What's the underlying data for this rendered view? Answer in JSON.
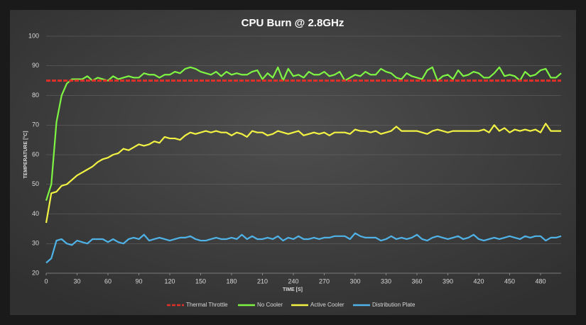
{
  "chart_data": {
    "type": "line",
    "title": "CPU Burn @ 2.8GHz",
    "x_label": "TIME [S]",
    "y_label": "TEMPERATURE [°C]",
    "x": [
      0,
      5,
      10,
      15,
      20,
      25,
      30,
      35,
      40,
      45,
      50,
      55,
      60,
      65,
      70,
      75,
      80,
      85,
      90,
      95,
      100,
      105,
      110,
      115,
      120,
      125,
      130,
      135,
      140,
      145,
      150,
      155,
      160,
      165,
      170,
      175,
      180,
      185,
      190,
      195,
      200,
      205,
      210,
      215,
      220,
      225,
      230,
      235,
      240,
      245,
      250,
      255,
      260,
      265,
      270,
      275,
      280,
      285,
      290,
      295,
      300,
      305,
      310,
      315,
      320,
      325,
      330,
      335,
      340,
      345,
      350,
      355,
      360,
      365,
      370,
      375,
      380,
      385,
      390,
      395,
      400,
      405,
      410,
      415,
      420,
      425,
      430,
      435,
      440,
      445,
      450,
      455,
      460,
      465,
      470,
      475,
      480,
      485,
      490,
      495,
      500
    ],
    "series": [
      {
        "name": "Thermal Throttle",
        "color": "#e0302a",
        "dashed": true,
        "x": [
          0,
          500
        ],
        "values": [
          85,
          85
        ]
      },
      {
        "name": "No Cooler",
        "color": "#7ef542",
        "values": [
          44.5,
          50,
          71,
          80,
          84,
          85.5,
          85.5,
          85.5,
          86.5,
          85,
          86,
          85.5,
          85,
          86.5,
          85.5,
          86,
          86.5,
          86,
          86,
          87.5,
          87,
          87,
          86,
          87,
          87,
          88,
          87.5,
          89,
          89.5,
          89,
          88,
          87.5,
          87,
          88,
          86.5,
          88,
          87,
          87.5,
          87,
          87,
          88,
          88.5,
          85.5,
          87.5,
          86,
          89.5,
          85,
          89,
          86.5,
          87,
          86,
          88,
          87,
          87,
          88,
          86.5,
          87,
          88,
          85,
          86,
          87,
          86.5,
          88,
          87,
          87,
          89,
          88,
          87.5,
          86,
          85.5,
          87.5,
          86.5,
          86,
          85.5,
          88.5,
          89.5,
          85,
          86.5,
          87,
          85.5,
          88.5,
          86.5,
          87,
          88,
          87.5,
          86,
          86,
          87.5,
          89.5,
          86.5,
          87,
          86.5,
          85,
          88,
          86.5,
          87,
          88.5,
          89,
          86,
          86,
          87.5
        ]
      },
      {
        "name": "Active Cooler",
        "color": "#f2f244",
        "values": [
          37,
          47,
          47.5,
          49.5,
          50,
          51.5,
          53,
          54,
          55,
          56,
          57.5,
          58.5,
          59,
          60,
          60.5,
          62,
          61.5,
          62.5,
          63.5,
          63,
          63.5,
          64.5,
          64,
          66,
          65.5,
          65.5,
          65,
          66.5,
          67.5,
          67,
          67.5,
          68,
          67.5,
          68,
          67.5,
          67.5,
          66.5,
          67.5,
          67,
          66,
          68,
          67.5,
          67.5,
          66.5,
          67,
          68,
          67.5,
          67,
          67.5,
          68,
          66.5,
          67,
          67.5,
          67,
          67.5,
          66.5,
          67.5,
          67.5,
          67.5,
          67,
          68.5,
          68,
          68,
          67.5,
          68,
          67,
          67.5,
          68,
          69.5,
          68,
          68,
          68,
          68,
          67.5,
          67,
          68,
          68.5,
          68,
          67.5,
          68,
          68,
          68,
          68,
          68,
          68,
          68.5,
          67.5,
          70,
          68,
          69,
          67.5,
          68.5,
          68,
          68.5,
          68,
          68.5,
          67.5,
          70.5,
          68,
          68,
          68
        ]
      },
      {
        "name": "Distribution Plate",
        "color": "#4fb3e8",
        "values": [
          23.5,
          25,
          31,
          31.5,
          30,
          29.5,
          31,
          30.5,
          30,
          31.5,
          31.5,
          31.5,
          30.5,
          31.5,
          30.5,
          30,
          31.5,
          32,
          31.5,
          33,
          31,
          31.5,
          32,
          31.5,
          31,
          31.5,
          32,
          32,
          32.5,
          31.5,
          31,
          31,
          31.5,
          32,
          31.5,
          31.5,
          32,
          31.5,
          33,
          31.5,
          32.5,
          31.5,
          31.5,
          32,
          31.5,
          32.5,
          31,
          32,
          31.5,
          32.5,
          31.5,
          31.5,
          32,
          31.5,
          32,
          32,
          32.5,
          32.5,
          32.5,
          31.5,
          33.5,
          32.5,
          32,
          32,
          32,
          31,
          31.5,
          32.5,
          31.5,
          32,
          31.5,
          32,
          33,
          31.5,
          31,
          32,
          32.5,
          32,
          31.5,
          32,
          32.5,
          31.5,
          32,
          33,
          31.5,
          31,
          31.5,
          32,
          31.5,
          32,
          32.5,
          32,
          31.5,
          32.5,
          32,
          32.5,
          32.5,
          31,
          32,
          32,
          32.5
        ]
      }
    ],
    "xlim": [
      0,
      500
    ],
    "xticks": [
      0,
      30,
      60,
      90,
      120,
      150,
      180,
      210,
      240,
      270,
      300,
      330,
      360,
      390,
      420,
      450,
      480
    ],
    "ylim": [
      20,
      100
    ],
    "yticks": [
      20,
      30,
      40,
      50,
      60,
      70,
      80,
      90,
      100
    ],
    "grid": true,
    "legend": "bottom"
  }
}
